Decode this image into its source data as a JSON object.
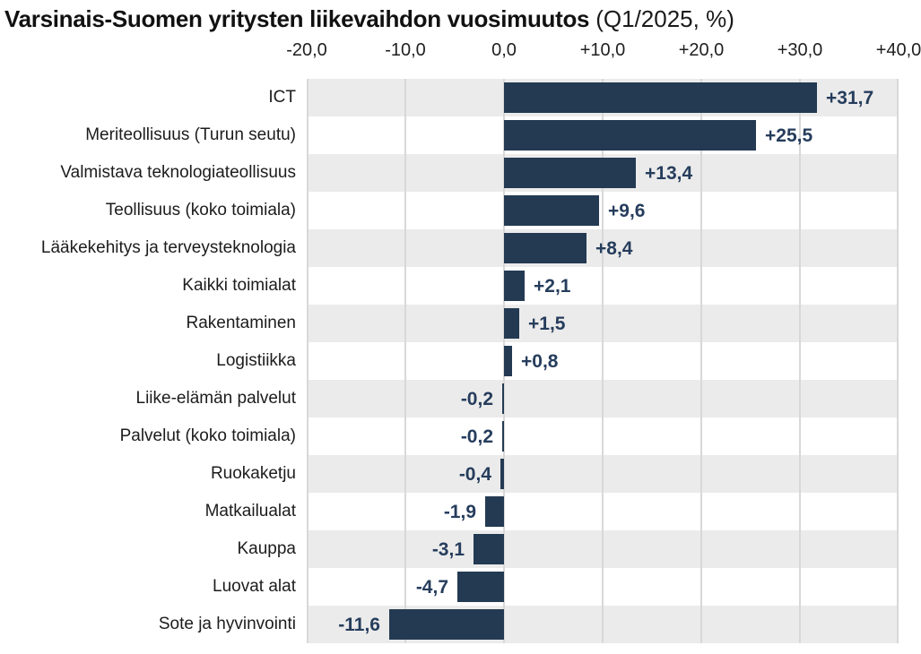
{
  "title": {
    "main": "Varsinais-Suomen yritysten liikevaihdon vuosimuutos",
    "suffix": "(Q1/2025, %)"
  },
  "colors": {
    "bar": "#233a52",
    "value_label": "#263d5c",
    "stripe_odd": "#ebebeb",
    "stripe_even": "#ffffff",
    "gridline": "#d8d8d8",
    "title_text": "#111111",
    "category_text": "#1c1c1c",
    "axis_text": "#1f1f1f"
  },
  "chart_data": {
    "type": "bar",
    "orientation": "horizontal",
    "title": "Varsinais-Suomen yritysten liikevaihdon vuosimuutos (Q1/2025, %)",
    "xlabel": "",
    "ylabel": "",
    "xlim": [
      -20,
      40
    ],
    "grid": "vertical",
    "legend": "none",
    "row_striping": "odd rows shaded light gray",
    "categories": [
      "ICT",
      "Meriteollisuus (Turun seutu)",
      "Valmistava teknologiateollisuus",
      "Teollisuus (koko toimiala)",
      "Lääkekehitys ja terveysteknologia",
      "Kaikki toimialat",
      "Rakentaminen",
      "Logistiikka",
      "Liike-elämän palvelut",
      "Palvelut (koko toimiala)",
      "Ruokaketju",
      "Matkailualat",
      "Kauppa",
      "Luovat alat",
      "Sote ja hyvinvointi"
    ],
    "values": [
      31.7,
      25.5,
      13.4,
      9.6,
      8.4,
      2.1,
      1.5,
      0.8,
      -0.2,
      -0.2,
      -0.4,
      -1.9,
      -3.1,
      -4.7,
      -11.6
    ],
    "value_labels": [
      "+31,7",
      "+25,5",
      "+13,4",
      "+9,6",
      "+8,4",
      "+2,1",
      "+1,5",
      "+0,8",
      "-0,2",
      "-0,2",
      "-0,4",
      "-1,9",
      "-3,1",
      "-4,7",
      "-11,6"
    ],
    "x_ticks": [
      -20,
      -10,
      0,
      10,
      20,
      30,
      40
    ],
    "x_tick_labels": [
      "-20,0",
      "-10,0",
      "0,0",
      "+10,0",
      "+20,0",
      "+30,0",
      "+40,0"
    ]
  }
}
